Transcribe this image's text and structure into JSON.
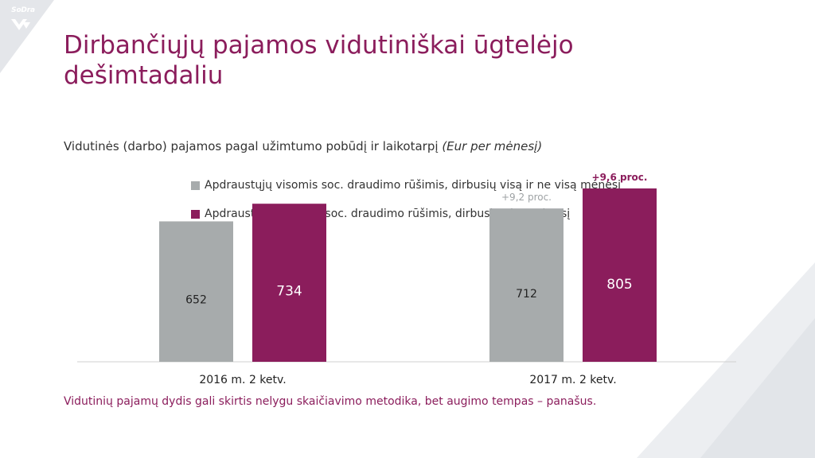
{
  "slide": {
    "logo_text": "SoDra",
    "title_line1": "Dirbančiųjų pajamos vidutiniškai ūgtelėjo",
    "title_line2": "dešimtadaliu",
    "subtitle_main": "Vidutinės (darbo) pajamos pagal užimtumo pobūdį ir laikotarpį",
    "subtitle_unit": "(Eur per mėnesį)",
    "footnote": "Vidutinių pajamų dydis gali skirtis nelygu skaičiavimo metodika, bet augimo tempas – panašus."
  },
  "colors": {
    "gray": "#a7abac",
    "purple": "#8b1d5c",
    "growth_gray": "#9ea2a4",
    "axis": "#d0d0d0",
    "deco": "#e4e6ea"
  },
  "chart_data": {
    "type": "bar",
    "categories": [
      "2016 m. 2 ketv.",
      "2017 m. 2 ketv."
    ],
    "series": [
      {
        "name": "Apdraustųjų visomis soc. draudimo rūšimis, dirbusių visą ir ne visą mėnesį",
        "values": [
          652,
          712
        ],
        "color_key": "gray"
      },
      {
        "name": "Apdraustųjų visomos soc. draudimo rūšimis, dirbusių visą mėnesį",
        "values": [
          734,
          805
        ],
        "color_key": "purple"
      }
    ],
    "growth_labels": [
      {
        "category_index": 1,
        "series_index": 0,
        "text": "+9,2 proc."
      },
      {
        "category_index": 1,
        "series_index": 1,
        "text": "+9,6 proc."
      }
    ],
    "ylim": [
      0,
      960
    ],
    "title": "",
    "xlabel": "",
    "ylabel": ""
  }
}
